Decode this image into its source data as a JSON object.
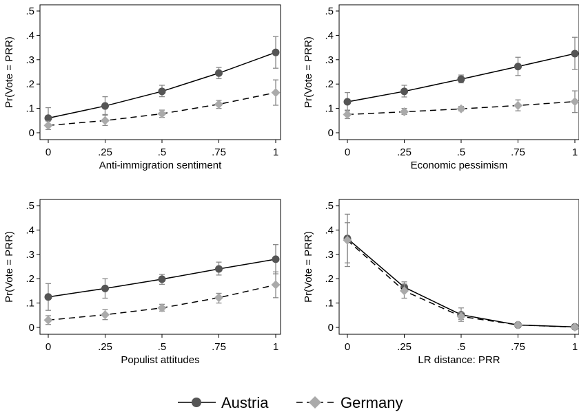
{
  "chart_data": [
    {
      "type": "line",
      "xlabel": "Anti-immigration sentiment",
      "ylabel": "Pr(Vote = PRR)",
      "x": [
        0,
        0.25,
        0.5,
        0.75,
        1
      ],
      "x_tick_labels": [
        "0",
        ".25",
        ".5",
        ".75",
        "1"
      ],
      "y_tick_labels": [
        "0",
        ".1",
        ".2",
        ".3",
        ".4",
        ".5"
      ],
      "ylim": [
        -0.03,
        0.51
      ],
      "series": [
        {
          "name": "Austria",
          "values": [
            0.06,
            0.11,
            0.17,
            0.245,
            0.33
          ],
          "ci_low": [
            0.025,
            0.075,
            0.148,
            0.222,
            0.265
          ],
          "ci_high": [
            0.103,
            0.148,
            0.195,
            0.268,
            0.395
          ]
        },
        {
          "name": "Germany",
          "values": [
            0.03,
            0.05,
            0.078,
            0.117,
            0.165
          ],
          "ci_low": [
            0.013,
            0.03,
            0.063,
            0.1,
            0.113
          ],
          "ci_high": [
            0.048,
            0.072,
            0.093,
            0.133,
            0.217
          ]
        }
      ]
    },
    {
      "type": "line",
      "xlabel": "Economic pessimism",
      "ylabel": "Pr(Vote = PRR)",
      "x": [
        0,
        0.25,
        0.5,
        0.75,
        1
      ],
      "x_tick_labels": [
        "0",
        ".25",
        ".5",
        ".75",
        "1"
      ],
      "y_tick_labels": [
        "0",
        ".1",
        ".2",
        ".3",
        ".4",
        ".5"
      ],
      "ylim": [
        -0.03,
        0.51
      ],
      "series": [
        {
          "name": "Austria",
          "values": [
            0.127,
            0.17,
            0.22,
            0.272,
            0.325
          ],
          "ci_low": [
            0.09,
            0.147,
            0.205,
            0.235,
            0.26
          ],
          "ci_high": [
            0.165,
            0.195,
            0.237,
            0.31,
            0.392
          ]
        },
        {
          "name": "Germany",
          "values": [
            0.075,
            0.086,
            0.098,
            0.112,
            0.128
          ],
          "ci_low": [
            0.058,
            0.075,
            0.09,
            0.09,
            0.083
          ],
          "ci_high": [
            0.093,
            0.1,
            0.108,
            0.135,
            0.172
          ]
        }
      ]
    },
    {
      "type": "line",
      "xlabel": "Populist attitudes",
      "ylabel": "Pr(Vote = PRR)",
      "x": [
        0,
        0.25,
        0.5,
        0.75,
        1
      ],
      "x_tick_labels": [
        "0",
        ".25",
        ".5",
        ".75",
        "1"
      ],
      "y_tick_labels": [
        "0",
        ".1",
        ".2",
        ".3",
        ".4",
        ".5"
      ],
      "ylim": [
        -0.03,
        0.51
      ],
      "series": [
        {
          "name": "Austria",
          "values": [
            0.125,
            0.16,
            0.198,
            0.24,
            0.28
          ],
          "ci_low": [
            0.07,
            0.12,
            0.177,
            0.215,
            0.22
          ],
          "ci_high": [
            0.18,
            0.2,
            0.218,
            0.268,
            0.34
          ]
        },
        {
          "name": "Germany",
          "values": [
            0.03,
            0.052,
            0.08,
            0.122,
            0.175
          ],
          "ci_low": [
            0.012,
            0.032,
            0.067,
            0.1,
            0.122
          ],
          "ci_high": [
            0.048,
            0.073,
            0.095,
            0.14,
            0.228
          ]
        }
      ]
    },
    {
      "type": "line",
      "xlabel": "LR distance: PRR",
      "ylabel": "Pr(Vote = PRR)",
      "x": [
        0,
        0.25,
        0.5,
        0.75,
        1
      ],
      "x_tick_labels": [
        "0",
        ".25",
        ".5",
        ".75",
        "1"
      ],
      "y_tick_labels": [
        "0",
        ".1",
        ".2",
        ".3",
        ".4",
        ".5"
      ],
      "ylim": [
        -0.03,
        0.51
      ],
      "series": [
        {
          "name": "Austria",
          "values": [
            0.365,
            0.165,
            0.052,
            0.01,
            0.002
          ],
          "ci_low": [
            0.265,
            0.145,
            0.025,
            0.0,
            0.0
          ],
          "ci_high": [
            0.465,
            0.187,
            0.08,
            0.02,
            0.005
          ]
        },
        {
          "name": "Germany",
          "values": [
            0.358,
            0.15,
            0.045,
            0.01,
            0.001
          ],
          "ci_low": [
            0.25,
            0.12,
            0.033,
            0.002,
            0.0
          ],
          "ci_high": [
            0.43,
            0.178,
            0.062,
            0.018,
            0.004
          ]
        }
      ]
    }
  ],
  "legend": {
    "items": [
      {
        "label": "Austria",
        "style": "solid",
        "marker": "circle",
        "color": "#555555"
      },
      {
        "label": "Germany",
        "style": "dashed",
        "marker": "diamond",
        "color": "#aaaaaa"
      }
    ]
  },
  "colors": {
    "austria": "#555555",
    "germany": "#aaaaaa",
    "ci": "#888888",
    "line": "#000000"
  }
}
